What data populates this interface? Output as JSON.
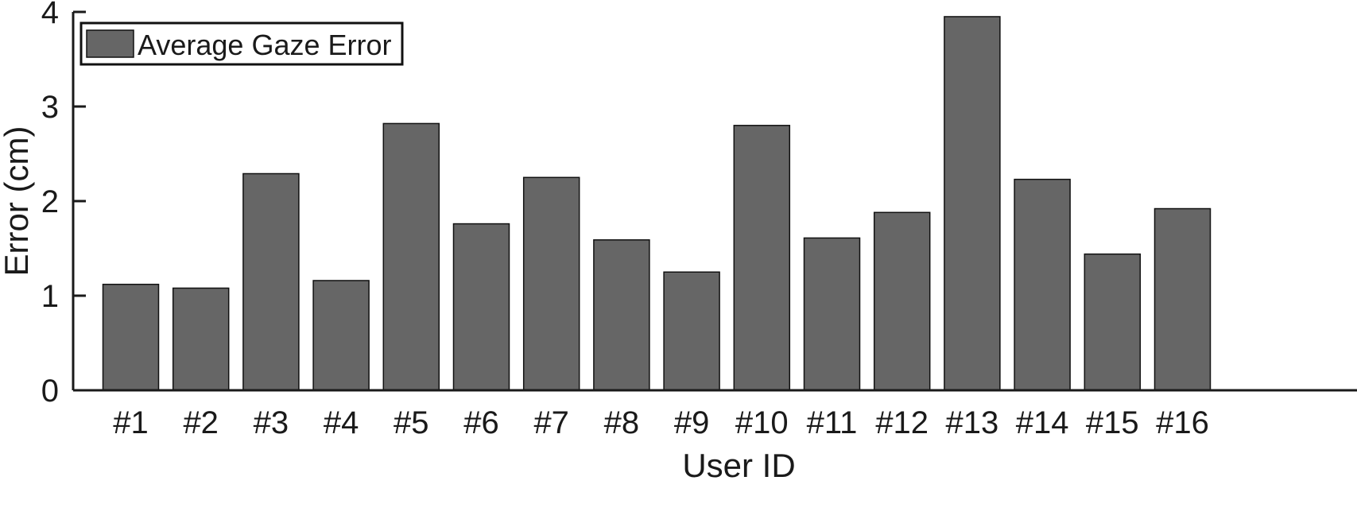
{
  "chart_data": {
    "type": "bar",
    "title": "",
    "xlabel": "User ID",
    "ylabel": "Error (cm)",
    "categories": [
      "#1",
      "#2",
      "#3",
      "#4",
      "#5",
      "#6",
      "#7",
      "#8",
      "#9",
      "#10",
      "#11",
      "#12",
      "#13",
      "#14",
      "#15",
      "#16"
    ],
    "series": [
      {
        "name": "Average Gaze Error",
        "color": "#666666",
        "values": [
          1.12,
          1.08,
          2.29,
          1.16,
          2.82,
          1.76,
          2.25,
          1.59,
          1.25,
          2.8,
          1.61,
          1.88,
          3.95,
          2.23,
          1.44,
          1.92
        ]
      }
    ],
    "ylim": [
      0,
      4
    ],
    "yticks": [
      "0",
      "1",
      "2",
      "3",
      "4"
    ],
    "grid": false,
    "legend": "top-left",
    "bar_edge_color": "#111111"
  }
}
